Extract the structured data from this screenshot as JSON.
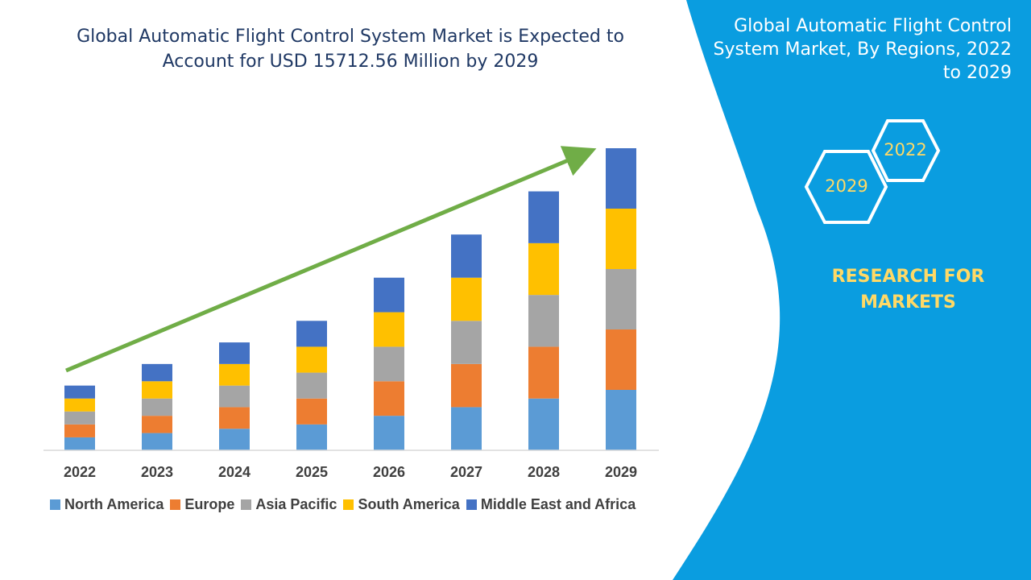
{
  "header": {
    "chart_title_line1": "Global Automatic Flight Control System Market is Expected to",
    "chart_title_line2": "Account for USD 15712.56 Million by 2029"
  },
  "side_panel": {
    "title_line1": "Global Automatic Flight Control",
    "title_line2": "System Market, By Regions, 2022",
    "title_line3": "to 2029",
    "hex_year_top": "2022",
    "hex_year_bottom": "2029",
    "brand_line1": "RESEARCH FOR",
    "brand_line2": "MARKETS",
    "background_color": "#0a9de0",
    "brand_color": "#ffd966"
  },
  "chart_data": {
    "type": "bar",
    "stacked": true,
    "categories": [
      "2022",
      "2023",
      "2024",
      "2025",
      "2026",
      "2027",
      "2028",
      "2029"
    ],
    "series": [
      {
        "name": "North America",
        "color": "#5b9bd5",
        "values": [
          3.0,
          4.0,
          5.0,
          6.0,
          8.0,
          10.0,
          12.0,
          14.0
        ]
      },
      {
        "name": "Europe",
        "color": "#ed7d31",
        "values": [
          3.0,
          4.0,
          5.0,
          6.0,
          8.0,
          10.0,
          12.0,
          14.0
        ]
      },
      {
        "name": "Asia Pacific",
        "color": "#a5a5a5",
        "values": [
          3.0,
          4.0,
          5.0,
          6.0,
          8.0,
          10.0,
          12.0,
          14.0
        ]
      },
      {
        "name": "South America",
        "color": "#ffc000",
        "values": [
          3.0,
          4.0,
          5.0,
          6.0,
          8.0,
          10.0,
          12.0,
          14.0
        ]
      },
      {
        "name": "Middle East and Africa",
        "color": "#4472c4",
        "values": [
          3.0,
          4.0,
          5.0,
          6.0,
          8.0,
          10.0,
          12.0,
          14.0
        ]
      }
    ],
    "ylim": [
      0,
      70
    ],
    "grid": false,
    "legend_position": "bottom",
    "trend_arrow_color": "#70ad47"
  }
}
